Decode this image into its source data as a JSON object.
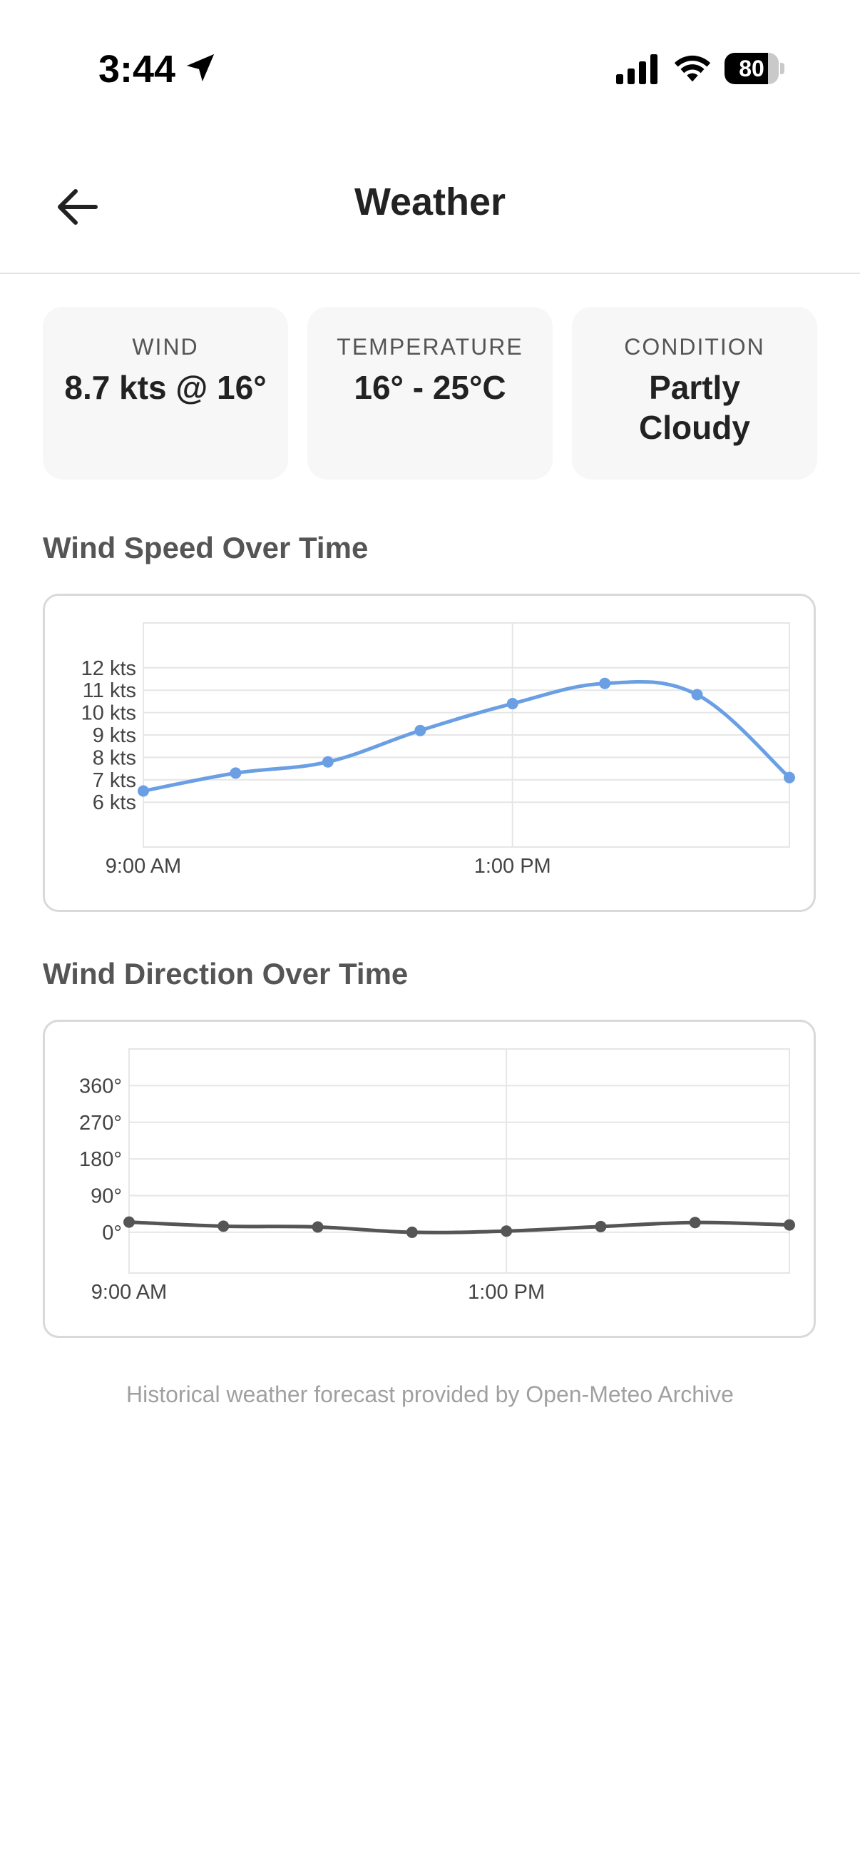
{
  "status_bar": {
    "time": "3:44",
    "battery": "80",
    "battery_level": 0.8,
    "icons": [
      "location-arrow-icon",
      "cellular-signal-icon",
      "wifi-icon",
      "battery-icon"
    ]
  },
  "header": {
    "title": "Weather",
    "back_icon": "arrow-left-icon"
  },
  "stats": [
    {
      "label": "WIND",
      "value": "8.7 kts @ 16°"
    },
    {
      "label": "TEMPERATURE",
      "value": "16° - 25°C"
    },
    {
      "label": "CONDITION",
      "value": "Partly Cloudy"
    }
  ],
  "sections": {
    "wind_speed_title": "Wind Speed Over Time",
    "wind_direction_title": "Wind Direction Over Time"
  },
  "footer": {
    "note": "Historical weather forecast provided by Open-Meteo Archive"
  },
  "colors": {
    "speed_line": "#6a9fe4",
    "direction_line": "#555555",
    "grid": "#e6e6e6"
  },
  "chart_data": [
    {
      "type": "line",
      "x_ticks": [
        "9:00 AM",
        "1:00 PM"
      ],
      "y_ticks": [
        "6 kts",
        "7 kts",
        "8 kts",
        "9 kts",
        "10 kts",
        "11 kts",
        "12 kts"
      ],
      "ylim": [
        4,
        14
      ],
      "xlim": [
        0,
        7
      ],
      "grid": true,
      "series": [
        {
          "x": [
            0,
            1,
            2,
            3,
            4,
            5,
            6,
            7
          ],
          "values": [
            6.5,
            7.3,
            7.8,
            9.2,
            10.4,
            11.3,
            10.8,
            7.1
          ]
        }
      ]
    },
    {
      "type": "line",
      "x_ticks": [
        "9:00 AM",
        "1:00 PM"
      ],
      "y_ticks": [
        "0°",
        "90°",
        "180°",
        "270°",
        "360°"
      ],
      "ylim": [
        -100,
        450
      ],
      "xlim": [
        0,
        7
      ],
      "grid": true,
      "series": [
        {
          "x": [
            0,
            1,
            2,
            3,
            4,
            5,
            6,
            7
          ],
          "values": [
            25,
            15,
            13,
            0,
            3,
            14,
            24,
            18
          ]
        }
      ]
    }
  ]
}
